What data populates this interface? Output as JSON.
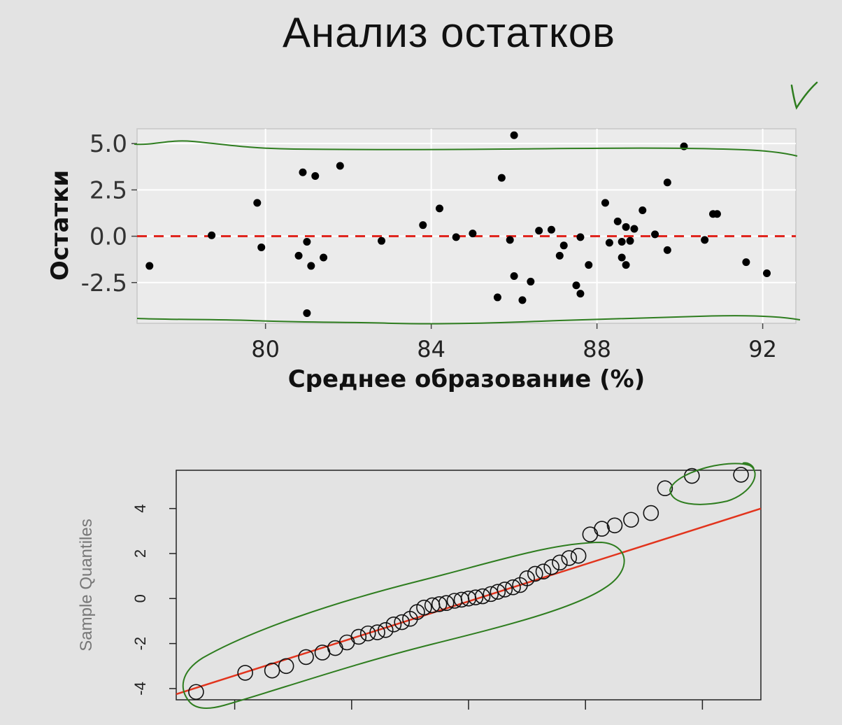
{
  "slide": {
    "title": "Анализ остатков"
  },
  "annotations": {
    "check_mark_color": "#2e7d1f",
    "outline_color": "#2e7d1f"
  },
  "chart_data": [
    {
      "type": "scatter",
      "title": "",
      "xlabel": "Среднее образование (%)",
      "ylabel": "Остатки",
      "xlim": [
        76.9,
        92.8
      ],
      "ylim": [
        -4.7,
        5.8
      ],
      "xticks": [
        80,
        84,
        88,
        92
      ],
      "xtick_labels": [
        "80",
        "84",
        "88",
        "92"
      ],
      "yticks": [
        5.0,
        2.5,
        0.0,
        -2.5
      ],
      "ytick_labels": [
        "5.0",
        "2.5",
        "0.0",
        "-2.5"
      ],
      "grid": true,
      "reference_line": {
        "y": 0.0,
        "style": "dashed",
        "color": "#e0261f"
      },
      "point_color": "#000000",
      "x": [
        77.2,
        78.7,
        79.8,
        79.9,
        80.8,
        80.9,
        81.0,
        81.0,
        81.1,
        81.2,
        81.4,
        81.8,
        82.8,
        83.8,
        84.2,
        84.6,
        85.0,
        85.6,
        85.7,
        85.9,
        86.0,
        86.0,
        86.2,
        86.4,
        86.6,
        86.9,
        87.1,
        87.2,
        87.5,
        87.6,
        87.6,
        87.8,
        88.2,
        88.3,
        88.5,
        88.6,
        88.6,
        88.7,
        88.7,
        88.8,
        88.9,
        89.1,
        89.4,
        89.7,
        89.7,
        90.1,
        90.6,
        90.8,
        90.9,
        91.6,
        92.1
      ],
      "y": [
        -1.6,
        0.05,
        1.8,
        -0.6,
        -1.05,
        3.45,
        -0.3,
        -4.15,
        -1.6,
        3.25,
        -1.15,
        3.8,
        -0.25,
        0.6,
        1.5,
        -0.05,
        0.15,
        -3.3,
        3.15,
        -0.2,
        5.45,
        -2.15,
        -3.45,
        -2.45,
        0.3,
        0.35,
        -1.05,
        -0.5,
        -2.65,
        -0.05,
        -3.1,
        -1.55,
        1.8,
        -0.35,
        0.8,
        -0.3,
        -1.15,
        -1.55,
        0.5,
        -0.25,
        0.4,
        1.4,
        0.1,
        -0.75,
        2.9,
        4.85,
        -0.2,
        1.2,
        1.2,
        -1.4,
        -2.0
      ]
    },
    {
      "type": "scatter",
      "title": "",
      "xlabel": "",
      "ylabel": "Sample Quantiles",
      "xlim": [
        -2.5,
        2.5
      ],
      "ylim": [
        -4.5,
        5.7
      ],
      "yticks": [
        4,
        2,
        0,
        -2,
        -4
      ],
      "ytick_labels": [
        "4",
        "2",
        "0",
        "-2",
        "-4"
      ],
      "xticks": [
        -2,
        -1,
        0,
        1,
        2
      ],
      "reference_line": {
        "from": [
          -2.5,
          -4.25
        ],
        "to": [
          2.5,
          4.0
        ],
        "color": "#e2341d"
      },
      "marker": "open-circle",
      "x": [
        -2.33,
        -1.91,
        -1.68,
        -1.56,
        -1.39,
        -1.25,
        -1.14,
        -1.04,
        -0.94,
        -0.86,
        -0.78,
        -0.71,
        -0.64,
        -0.57,
        -0.5,
        -0.44,
        -0.38,
        -0.31,
        -0.25,
        -0.19,
        -0.12,
        -0.06,
        0.0,
        0.06,
        0.12,
        0.19,
        0.25,
        0.31,
        0.38,
        0.44,
        0.5,
        0.57,
        0.64,
        0.71,
        0.78,
        0.86,
        0.94,
        1.04,
        1.14,
        1.25,
        1.39,
        1.56,
        1.68,
        1.91,
        2.33
      ],
      "y": [
        -4.15,
        -3.3,
        -3.2,
        -3.0,
        -2.6,
        -2.4,
        -2.2,
        -1.95,
        -1.7,
        -1.55,
        -1.5,
        -1.4,
        -1.15,
        -1.05,
        -0.9,
        -0.6,
        -0.4,
        -0.3,
        -0.25,
        -0.2,
        -0.1,
        -0.05,
        0.0,
        0.05,
        0.1,
        0.2,
        0.3,
        0.4,
        0.5,
        0.6,
        0.9,
        1.1,
        1.2,
        1.4,
        1.6,
        1.8,
        1.9,
        2.85,
        3.1,
        3.25,
        3.5,
        3.8,
        4.9,
        5.45,
        5.5
      ]
    }
  ]
}
